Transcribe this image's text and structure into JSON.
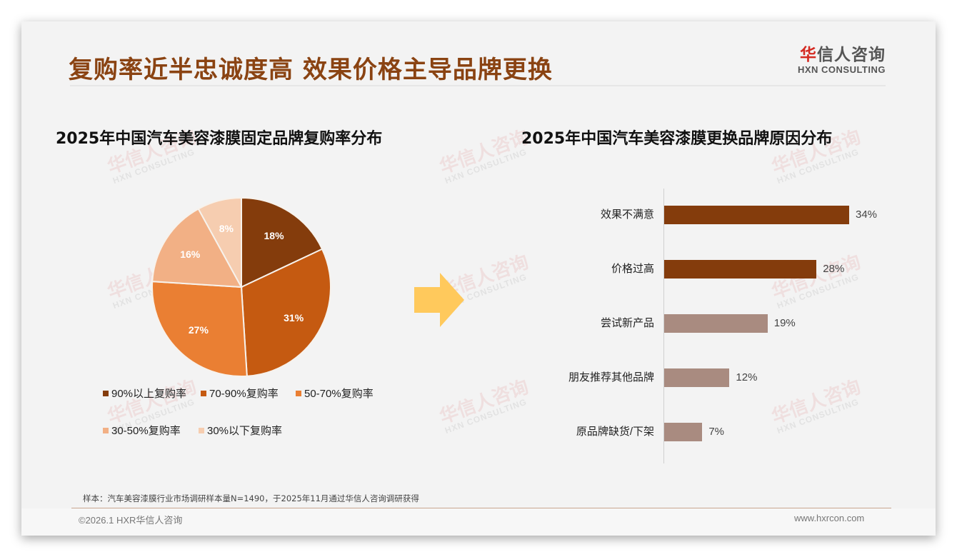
{
  "header": {
    "title": "复购率近半忠诚度高 效果价格主导品牌更换",
    "logo_cn_first": "华",
    "logo_cn_rest": "信人咨询",
    "logo_en": "HXN CONSULTING"
  },
  "watermark": {
    "cn": "华信人咨询",
    "en": "HXN CONSULTING"
  },
  "left_chart": {
    "title": "2025年中国汽车美容漆膜固定品牌复购率分布"
  },
  "right_chart": {
    "title": "2025年中国汽车美容漆膜更换品牌原因分布"
  },
  "footer": {
    "source_note": "样本：汽车美容漆膜行业市场调研样本量N=1490，于2025年11月通过华信人咨询调研获得",
    "copyright": "©2026.1 HXR华信人咨询",
    "website": "www.hxrcon.com"
  },
  "colors": {
    "title": "#8a4312",
    "arrow": "#ffc95c",
    "bar_dark": "#843c0c",
    "bar_light": "#a98b80"
  },
  "chart_data": [
    {
      "type": "pie",
      "title": "2025年中国汽车美容漆膜固定品牌复购率分布",
      "categories": [
        "90%以上复购率",
        "70-90%复购率",
        "50-70%复购率",
        "30-50%复购率",
        "30%以下复购率"
      ],
      "values": [
        18,
        31,
        27,
        16,
        8
      ],
      "labels": [
        "18%",
        "31%",
        "27%",
        "16%",
        "8%"
      ],
      "colors": [
        "#843c0c",
        "#c55a11",
        "#ea7f33",
        "#f2b085",
        "#f6cdb0"
      ],
      "legend_position": "bottom",
      "unit": "%"
    },
    {
      "type": "bar",
      "orientation": "horizontal",
      "title": "2025年中国汽车美容漆膜更换品牌原因分布",
      "categories": [
        "效果不满意",
        "价格过高",
        "尝试新产品",
        "朋友推荐其他品牌",
        "原品牌缺货/下架"
      ],
      "values": [
        34,
        28,
        19,
        12,
        7
      ],
      "labels": [
        "34%",
        "28%",
        "19%",
        "12%",
        "7%"
      ],
      "colors": [
        "#843c0c",
        "#843c0c",
        "#a98b80",
        "#a98b80",
        "#a98b80"
      ],
      "xlabel": "",
      "ylabel": "",
      "grid": false,
      "unit": "%"
    }
  ]
}
